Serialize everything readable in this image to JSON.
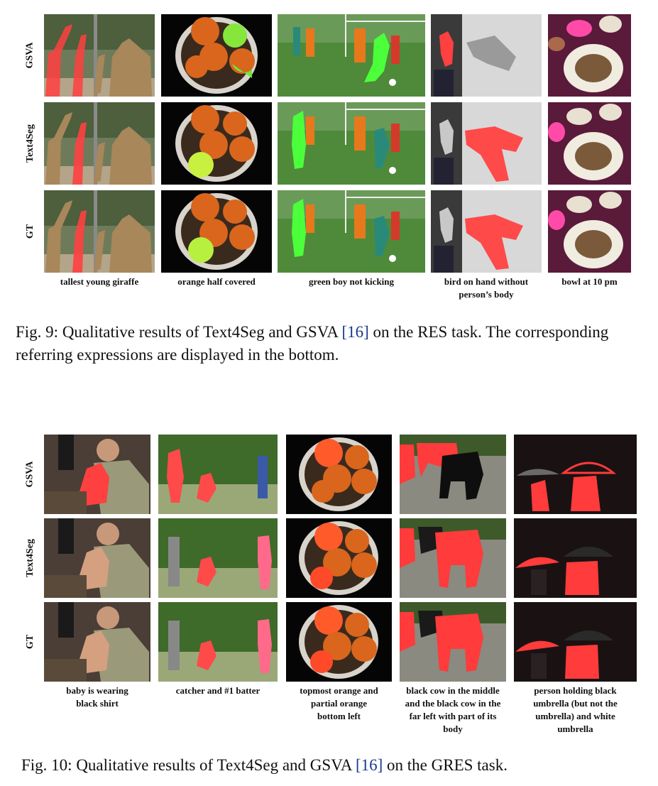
{
  "fig9": {
    "rows": [
      "GSVA",
      "Text4Seg",
      "GT"
    ],
    "expressions": [
      "tallest young giraffe",
      "orange half covered",
      "green boy not kicking",
      "bird on hand without\nperson’s body",
      "bowl at 10 pm"
    ],
    "caption_a": "Fig. 9: Qualitative results of Text4Seg and GSVA ",
    "caption_ref": "[16]",
    "caption_b": " on the RES task. The corresponding referring expressions are displayed in the bottom."
  },
  "fig10": {
    "rows": [
      "GSVA",
      "Text4Seg",
      "GT"
    ],
    "expressions": [
      "baby is wearing\nblack shirt",
      "catcher and #1 batter",
      "topmost orange and\npartial orange\nbottom left",
      "black cow in the middle\nand the black cow in the\nfar left with part of its\nbody",
      "person holding black\numbrella (but not the\numbrella) and white\numbrella"
    ],
    "caption_a": "Fig. 10: Qualitative results of Text4Seg and GSVA ",
    "caption_ref": "[16]",
    "caption_b": " on the GRES task."
  },
  "colors": {
    "mask_red": "#ff3b3b",
    "mask_green": "#4cff3b",
    "caption_ref": "#1a3a8a"
  }
}
